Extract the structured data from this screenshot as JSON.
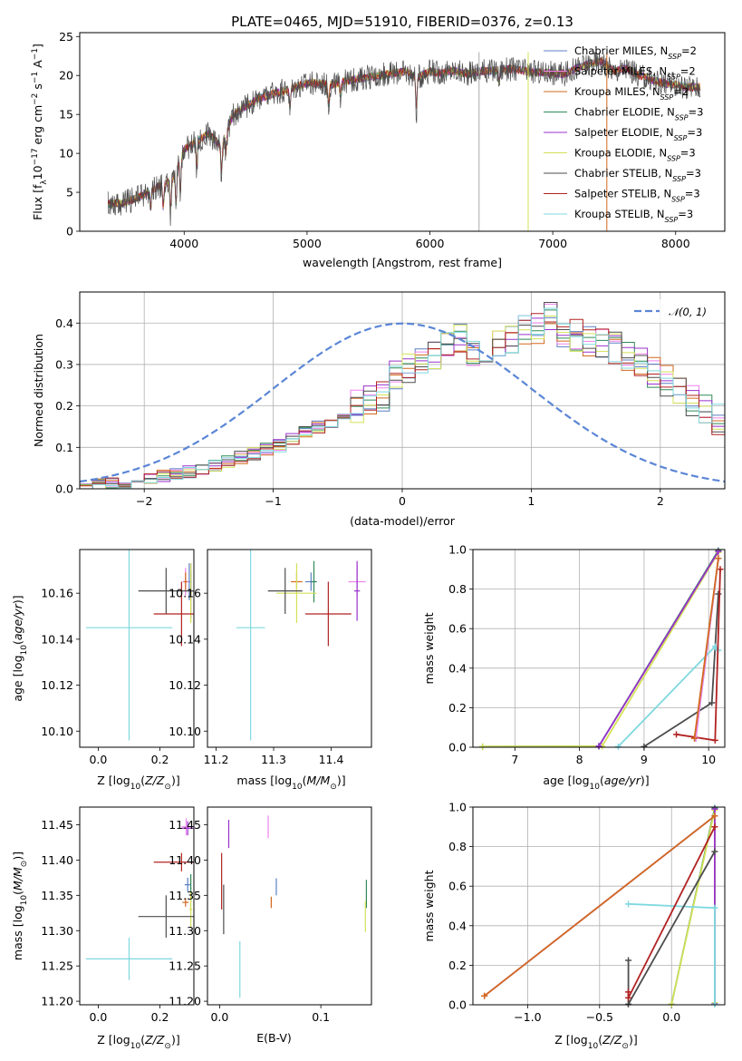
{
  "figure": {
    "title": "PLATE=0465, MJD=51910, FIBERID=0376, z=0.13"
  },
  "models": [
    {
      "name": "Chabrier MILES, N$_{SSP}$=2",
      "label_main": "Chabrier MILES, N",
      "label_sub": "SSP",
      "label_tail": "=2",
      "color": "#5b7fc4"
    },
    {
      "name": "Salpeter MILES, N$_{SSP}$=2",
      "label_main": "Salpeter MILES, N",
      "label_sub": "SSP",
      "label_tail": "=2",
      "color": "#ee82ee"
    },
    {
      "name": "Kroupa MILES, N$_{SSP}$=2",
      "label_main": "Kroupa MILES, N",
      "label_sub": "SSP",
      "label_tail": "=2",
      "color": "#d2691e"
    },
    {
      "name": "Chabrier ELODIE, N$_{SSP}$=3",
      "label_main": "Chabrier ELODIE, N",
      "label_sub": "SSP",
      "label_tail": "=3",
      "color": "#2e8b57"
    },
    {
      "name": "Salpeter ELODIE, N$_{SSP}$=3",
      "label_main": "Salpeter ELODIE, N",
      "label_sub": "SSP",
      "label_tail": "=3",
      "color": "#9932cc"
    },
    {
      "name": "Kroupa ELODIE, N$_{SSP}$=3",
      "label_main": "Kroupa ELODIE, N",
      "label_sub": "SSP",
      "label_tail": "=3",
      "color": "#d4e157"
    },
    {
      "name": "Chabrier STELIB, N$_{SSP}$=3",
      "label_main": "Chabrier STELIB, N",
      "label_sub": "SSP",
      "label_tail": "=3",
      "color": "#4d4d4d"
    },
    {
      "name": "Salpeter STELIB, N$_{SSP}$=3",
      "label_main": "Salpeter STELIB, N",
      "label_sub": "SSP",
      "label_tail": "=3",
      "color": "#b22222"
    },
    {
      "name": "Kroupa STELIB, N$_{SSP}$=3",
      "label_main": "Kroupa STELIB, N",
      "label_sub": "SSP",
      "label_tail": "=3",
      "color": "#7fd8e0"
    }
  ],
  "chart_data": [
    {
      "id": "spectrum",
      "type": "line",
      "xlabel": "wavelength [Angstrom, rest frame]",
      "ylabel": "Flux [f$_\\lambda$ 10$^{-17}$ erg cm$^{-2}$ s$^{-1}$ A$^{-1}$]",
      "ylabel_parts": [
        "Flux [f",
        "λ",
        "10",
        "−17",
        " erg cm",
        "−2",
        " s",
        "−1",
        " A",
        "−1",
        "]"
      ],
      "xlim": [
        3150,
        8400
      ],
      "ylim": [
        0,
        25.5
      ],
      "xticks": [
        4000,
        5000,
        6000,
        7000,
        8000
      ],
      "yticks": [
        0,
        5,
        10,
        15,
        20,
        25
      ],
      "legend": "top-right",
      "continuum": {
        "x": [
          3380,
          3500,
          3650,
          3800,
          3900,
          4000,
          4100,
          4200,
          4300,
          4400,
          4500,
          4600,
          4700,
          4800,
          4900,
          5000,
          5100,
          5200,
          5300,
          5400,
          5500,
          5600,
          5700,
          5800,
          5900,
          6000,
          6100,
          6200,
          6300,
          6400,
          6500,
          6600,
          6700,
          6800,
          6900,
          7000,
          7100,
          7200,
          7300,
          7400,
          7500,
          7600,
          7700,
          7800,
          7900,
          8000,
          8100,
          8200
        ],
        "y": [
          3.5,
          3.6,
          4.5,
          5.8,
          6.5,
          10.5,
          11.5,
          12.5,
          11.0,
          15.0,
          16.0,
          17.0,
          17.5,
          18.0,
          18.5,
          19.0,
          19.0,
          18.8,
          19.2,
          19.5,
          19.8,
          20.0,
          20.3,
          20.5,
          19.8,
          20.5,
          20.3,
          20.6,
          20.2,
          20.5,
          20.6,
          20.8,
          20.8,
          20.5,
          20.4,
          20.3,
          20.2,
          21.0,
          21.5,
          21.8,
          20.5,
          21.0,
          20.0,
          19.5,
          19.0,
          18.8,
          18.5,
          18.5
        ]
      },
      "absorption_lines": [
        {
          "x": 3727,
          "depth": 2.0
        },
        {
          "x": 3830,
          "depth": 3.0
        },
        {
          "x": 3889,
          "depth": 3.5
        },
        {
          "x": 3934,
          "depth": 4.5
        },
        {
          "x": 3969,
          "depth": 4.5
        },
        {
          "x": 4102,
          "depth": 3.0
        },
        {
          "x": 4304,
          "depth": 3.5
        },
        {
          "x": 4341,
          "depth": 2.5
        },
        {
          "x": 4861,
          "depth": 2.5
        },
        {
          "x": 5175,
          "depth": 2.5
        },
        {
          "x": 5270,
          "depth": 1.5
        },
        {
          "x": 5890,
          "depth": 4.0
        },
        {
          "x": 6563,
          "depth": 1.5
        }
      ],
      "artifacts": [
        {
          "x": 6400,
          "color": "#aaaaaa"
        },
        {
          "x": 6800,
          "color": "#d4e157"
        },
        {
          "x": 7440,
          "color": "#d2691e"
        }
      ]
    },
    {
      "id": "residual-histogram",
      "type": "histogram",
      "xlabel": "(data-model)/error",
      "ylabel": "Normed distribution",
      "xlim": [
        -2.5,
        2.5
      ],
      "ylim": [
        0,
        0.475
      ],
      "xticks": [
        -2,
        -1,
        0,
        1,
        2
      ],
      "yticks": [
        0.0,
        0.1,
        0.2,
        0.3,
        0.4
      ],
      "grid": true,
      "legend": "top-right",
      "reference_curve": {
        "name": "$\\mathcal{N}(0,1)$",
        "label": "𝒩(0, 1)",
        "mean": 0,
        "sigma": 1,
        "color": "#5b86d6"
      },
      "bin_centers": [
        -2.45,
        -2.35,
        -2.25,
        -2.15,
        -2.05,
        -1.95,
        -1.85,
        -1.75,
        -1.65,
        -1.55,
        -1.45,
        -1.35,
        -1.25,
        -1.15,
        -1.05,
        -0.95,
        -0.85,
        -0.75,
        -0.65,
        -0.55,
        -0.45,
        -0.35,
        -0.25,
        -0.15,
        -0.05,
        0.05,
        0.15,
        0.25,
        0.35,
        0.45,
        0.55,
        0.65,
        0.75,
        0.85,
        0.95,
        1.05,
        1.15,
        1.25,
        1.35,
        1.45,
        1.55,
        1.65,
        1.75,
        1.85,
        1.95,
        2.05,
        2.15,
        2.25,
        2.35,
        2.45
      ],
      "base_profile": [
        0.005,
        0.008,
        0.012,
        0.015,
        0.02,
        0.025,
        0.03,
        0.035,
        0.04,
        0.05,
        0.055,
        0.065,
        0.075,
        0.085,
        0.095,
        0.105,
        0.12,
        0.14,
        0.15,
        0.16,
        0.17,
        0.2,
        0.21,
        0.22,
        0.27,
        0.29,
        0.3,
        0.32,
        0.36,
        0.37,
        0.33,
        0.34,
        0.35,
        0.36,
        0.38,
        0.39,
        0.41,
        0.38,
        0.37,
        0.36,
        0.35,
        0.34,
        0.32,
        0.3,
        0.28,
        0.26,
        0.23,
        0.21,
        0.19,
        0.17
      ]
    },
    {
      "id": "age-vs-Z",
      "type": "errorbar",
      "xlabel": "Z [log$_{10}$(Z/Z$_\\odot$)]",
      "ylabel": "age  [log$_{10}$(age/yr)]",
      "xlim": [
        -0.06,
        0.31
      ],
      "ylim": [
        10.093,
        10.179
      ],
      "xticks": [
        0.0,
        0.2
      ],
      "yticks": [
        10.1,
        10.12,
        10.14,
        10.16
      ],
      "points": [
        {
          "model": 0,
          "x": 0.295,
          "xerr": 0.003,
          "y": 10.165,
          "yerr": 0.008
        },
        {
          "model": 1,
          "x": 0.283,
          "xerr": 0.01,
          "y": 10.165,
          "yerr": 0.006
        },
        {
          "model": 2,
          "x": 0.283,
          "xerr": 0.006,
          "y": 10.165,
          "yerr": 0.004
        },
        {
          "model": 3,
          "x": 0.3,
          "xerr": 0.002,
          "y": 10.165,
          "yerr": 0.004
        },
        {
          "model": 4,
          "x": 0.3,
          "xerr": 0.006,
          "y": 10.161,
          "yerr": 0.012
        },
        {
          "model": 5,
          "x": 0.3,
          "xerr": 0.004,
          "y": 10.16,
          "yerr": 0.013
        },
        {
          "model": 6,
          "x": 0.22,
          "xerr": 0.09,
          "y": 10.161,
          "yerr": 0.01
        },
        {
          "model": 7,
          "x": 0.27,
          "xerr": 0.09,
          "y": 10.151,
          "yerr": 0.014
        },
        {
          "model": 8,
          "x": 0.1,
          "xerr": 0.14,
          "y": 10.145,
          "yerr": 0.049
        }
      ]
    },
    {
      "id": "age-vs-mass",
      "type": "errorbar",
      "xlabel": "mass [log$_{10}$(M/M$_\\odot$)]",
      "ylabel": "",
      "xlim": [
        11.185,
        11.47
      ],
      "ylim": [
        10.093,
        10.179
      ],
      "xticks": [
        11.2,
        11.3,
        11.4
      ],
      "yticks": [
        10.1,
        10.12,
        10.14,
        10.16
      ],
      "points": [
        {
          "model": 0,
          "x": 11.365,
          "xerr": 0.01,
          "y": 10.165,
          "yerr": 0.004
        },
        {
          "model": 1,
          "x": 11.445,
          "xerr": 0.015,
          "y": 10.165,
          "yerr": 0.007
        },
        {
          "model": 2,
          "x": 11.34,
          "xerr": 0.01,
          "y": 10.165,
          "yerr": 0.004
        },
        {
          "model": 3,
          "x": 11.37,
          "xerr": 0.005,
          "y": 10.165,
          "yerr": 0.009
        },
        {
          "model": 4,
          "x": 11.445,
          "xerr": 0.005,
          "y": 10.161,
          "yerr": 0.013
        },
        {
          "model": 5,
          "x": 11.34,
          "xerr": 0.035,
          "y": 10.16,
          "yerr": 0.013
        },
        {
          "model": 6,
          "x": 11.32,
          "xerr": 0.03,
          "y": 10.161,
          "yerr": 0.01
        },
        {
          "model": 7,
          "x": 11.395,
          "xerr": 0.04,
          "y": 10.151,
          "yerr": 0.014
        },
        {
          "model": 8,
          "x": 11.26,
          "xerr": 0.025,
          "y": 10.145,
          "yerr": 0.049
        }
      ]
    },
    {
      "id": "weight-vs-age",
      "type": "line",
      "xlabel": "age  [log$_{10}$(age/yr)]",
      "ylabel": "mass weight",
      "xlim": [
        6.35,
        10.25
      ],
      "ylim": [
        0,
        1.0
      ],
      "xticks": [
        7,
        8,
        9,
        10
      ],
      "yticks": [
        0.0,
        0.2,
        0.4,
        0.6,
        0.8,
        1.0
      ],
      "grid": true,
      "series": [
        {
          "model": 3,
          "x": [
            6.5,
            8.3,
            10.15
          ],
          "y": [
            0.003,
            0.005,
            0.995
          ]
        },
        {
          "model": 5,
          "x": [
            6.5,
            8.35,
            10.15
          ],
          "y": [
            0.003,
            0.005,
            0.985
          ]
        },
        {
          "model": 4,
          "x": [
            8.3,
            10.15
          ],
          "y": [
            0.005,
            0.99
          ]
        },
        {
          "model": 6,
          "x": [
            9.0,
            10.05,
            10.15
          ],
          "y": [
            0.003,
            0.225,
            0.775
          ]
        },
        {
          "model": 8,
          "x": [
            8.6,
            10.1,
            10.15
          ],
          "y": [
            0.003,
            0.51,
            0.49
          ]
        },
        {
          "model": 7,
          "x": [
            9.5,
            10.1,
            10.18
          ],
          "y": [
            0.065,
            0.035,
            0.9
          ]
        },
        {
          "model": 0,
          "x": [
            9.8,
            10.15
          ],
          "y": [
            0.045,
            0.955
          ]
        },
        {
          "model": 1,
          "x": [
            9.8,
            10.15
          ],
          "y": [
            0.045,
            0.955
          ]
        },
        {
          "model": 2,
          "x": [
            9.78,
            10.15
          ],
          "y": [
            0.045,
            0.955
          ]
        }
      ]
    },
    {
      "id": "mass-vs-Z",
      "type": "errorbar",
      "xlabel": "Z [log$_{10}$(Z/Z$_\\odot$)]",
      "ylabel": "mass [log$_{10}$(M/M$_\\odot$)]",
      "xlim": [
        -0.06,
        0.31
      ],
      "ylim": [
        11.195,
        11.475
      ],
      "xticks": [
        0.0,
        0.2
      ],
      "yticks": [
        11.2,
        11.25,
        11.3,
        11.35,
        11.4,
        11.45
      ],
      "points": [
        {
          "model": 0,
          "x": 0.29,
          "xerr": 0.01,
          "y": 11.365,
          "yerr": 0.01
        },
        {
          "model": 1,
          "x": 0.285,
          "xerr": 0.015,
          "y": 11.447,
          "yerr": 0.012
        },
        {
          "model": 2,
          "x": 0.283,
          "xerr": 0.01,
          "y": 11.34,
          "yerr": 0.006
        },
        {
          "model": 3,
          "x": 0.3,
          "xerr": 0.002,
          "y": 11.36,
          "yerr": 0.02
        },
        {
          "model": 4,
          "x": 0.29,
          "xerr": 0.02,
          "y": 11.445,
          "yerr": 0.01
        },
        {
          "model": 5,
          "x": 0.3,
          "xerr": 0.005,
          "y": 11.33,
          "yerr": 0.025
        },
        {
          "model": 6,
          "x": 0.22,
          "xerr": 0.09,
          "y": 11.32,
          "yerr": 0.03
        },
        {
          "model": 7,
          "x": 0.27,
          "xerr": 0.09,
          "y": 11.397,
          "yerr": 0.013
        },
        {
          "model": 8,
          "x": 0.1,
          "xerr": 0.14,
          "y": 11.26,
          "yerr": 0.03
        }
      ]
    },
    {
      "id": "mass-vs-EBV",
      "type": "errorbar",
      "xlabel": "E(B-V)",
      "ylabel": "",
      "xlim": [
        -0.012,
        0.15
      ],
      "ylim": [
        11.195,
        11.475
      ],
      "xticks": [
        0.0,
        0.1
      ],
      "yticks": [
        11.2,
        11.25,
        11.3,
        11.35,
        11.4,
        11.45
      ],
      "points": [
        {
          "model": 0,
          "x": 0.056,
          "xerr": 0.0,
          "y": 11.362,
          "yerr": 0.012
        },
        {
          "model": 1,
          "x": 0.048,
          "xerr": 0.0,
          "y": 11.447,
          "yerr": 0.016
        },
        {
          "model": 2,
          "x": 0.051,
          "xerr": 0.0,
          "y": 11.34,
          "yerr": 0.008
        },
        {
          "model": 3,
          "x": 0.145,
          "xerr": 0.0,
          "y": 11.352,
          "yerr": 0.02
        },
        {
          "model": 4,
          "x": 0.009,
          "xerr": 0.0,
          "y": 11.437,
          "yerr": 0.02
        },
        {
          "model": 5,
          "x": 0.144,
          "xerr": 0.0,
          "y": 11.32,
          "yerr": 0.022
        },
        {
          "model": 6,
          "x": 0.004,
          "xerr": 0.0,
          "y": 11.33,
          "yerr": 0.035
        },
        {
          "model": 7,
          "x": 0.002,
          "xerr": 0.0,
          "y": 11.37,
          "yerr": 0.04
        },
        {
          "model": 8,
          "x": 0.02,
          "xerr": 0.0,
          "y": 11.245,
          "yerr": 0.04
        }
      ]
    },
    {
      "id": "weight-vs-Z",
      "type": "line",
      "xlabel": "Z [log$_{10}$(Z/Z$_\\odot$)]",
      "ylabel": "mass weight",
      "xlim": [
        -1.38,
        0.37
      ],
      "ylim": [
        0,
        1.0
      ],
      "xticks": [
        -1.0,
        -0.5,
        0.0
      ],
      "yticks": [
        0.0,
        0.2,
        0.4,
        0.6,
        0.8,
        1.0
      ],
      "grid": true,
      "series": [
        {
          "model": 3,
          "x": [
            0.0,
            0.3,
            0.3
          ],
          "y": [
            0.003,
            0.995,
            0.005
          ]
        },
        {
          "model": 5,
          "x": [
            0.0,
            0.3,
            0.3
          ],
          "y": [
            0.003,
            0.985,
            0.01
          ]
        },
        {
          "model": 4,
          "x": [
            0.3,
            0.3
          ],
          "y": [
            0.005,
            0.99
          ]
        },
        {
          "model": 8,
          "x": [
            -0.3,
            0.3,
            0.3
          ],
          "y": [
            0.51,
            0.49,
            0.003
          ]
        },
        {
          "model": 6,
          "x": [
            -0.3,
            -0.3,
            0.3
          ],
          "y": [
            0.225,
            0.003,
            0.775
          ]
        },
        {
          "model": 7,
          "x": [
            -0.3,
            -0.3,
            0.3
          ],
          "y": [
            0.065,
            0.035,
            0.9
          ]
        },
        {
          "model": 0,
          "x": [
            -1.3,
            0.3
          ],
          "y": [
            0.045,
            0.955
          ]
        },
        {
          "model": 1,
          "x": [
            -1.3,
            0.3
          ],
          "y": [
            0.045,
            0.955
          ]
        },
        {
          "model": 2,
          "x": [
            -1.3,
            0.3
          ],
          "y": [
            0.045,
            0.955
          ]
        }
      ]
    }
  ],
  "text": {
    "age_label_parts": [
      "age  [log",
      "10",
      "(",
      "age/yr",
      ")]"
    ],
    "z_label_parts": [
      "Z [log",
      "10",
      "(",
      "Z/Z",
      "⊙",
      ")]"
    ],
    "mass_label_parts": [
      "mass [log",
      "10",
      "(",
      "M/M",
      "⊙",
      ")]"
    ]
  }
}
